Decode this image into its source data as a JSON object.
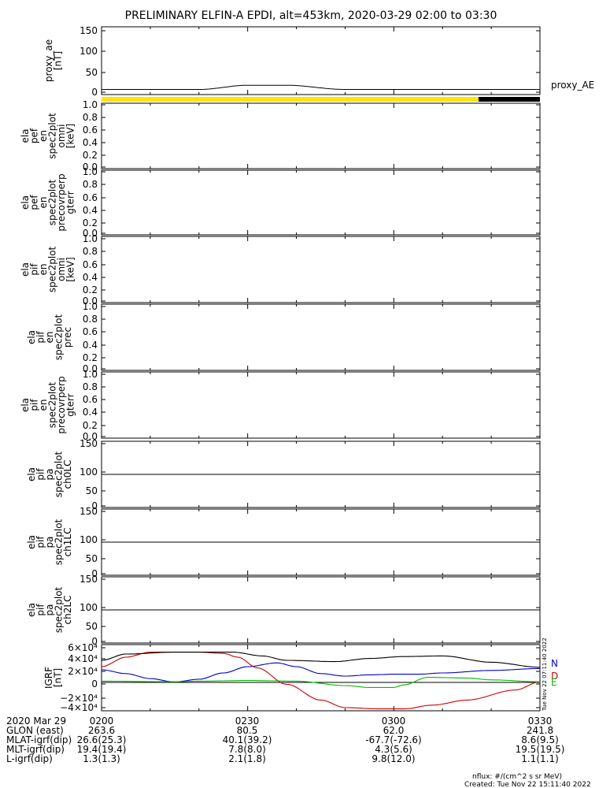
{
  "title": "PRELIMINARY ELFIN-A EPDI, alt=453km, 2020-03-29 02:00 to 03:30",
  "colors": {
    "axes": "#000000",
    "bar_yellow": "#ffe600",
    "bar_black": "#000000",
    "grf_N": "#0000cc",
    "grf_D": "#cc0000",
    "grf_E": "#00bb00",
    "grf_total": "#000000"
  },
  "created_side_text": "Tue Nov 22 07:11:40 2022",
  "footer": {
    "nflux": "nflux: #/(cm^2 s sr MeV)",
    "created": "Created: Tue Nov 22 15:11:40 2022"
  },
  "ephemeris": {
    "labels": [
      "2020 Mar 29",
      "GLON (east)",
      "MLAT-igrf(dip)",
      "MLT-igrf(dip)",
      "L-igrf(dip)"
    ],
    "times": [
      "0200",
      "0230",
      "0300",
      "0330"
    ],
    "rows": [
      [
        "263.6",
        "80.5",
        "62.0",
        "241.8"
      ],
      [
        "26.6(25.3)",
        "40.1(39.2)",
        "-67.7(-72.6)",
        "8.6(9.5)"
      ],
      [
        "19.4(19.4)",
        "7.8(8.0)",
        "4.3(5.6)",
        "19.5(19.5)"
      ],
      [
        "1.3(1.3)",
        "2.1(1.8)",
        "9.8(12.0)",
        "1.1(1.1)"
      ]
    ]
  },
  "chart_data": [
    {
      "type": "line",
      "ylabel": [
        "proxy_ae",
        "[nT]"
      ],
      "yticks": [
        "150",
        "100",
        "50",
        "0"
      ],
      "ylim": [
        0,
        160
      ],
      "legend": "proxy_AE",
      "series": [
        {
          "name": "proxy_AE",
          "x_minutes": [
            0,
            20,
            30,
            38,
            50,
            60,
            90
          ],
          "values": [
            12,
            12,
            22,
            22,
            12,
            12,
            12
          ]
        }
      ]
    },
    {
      "type": "heatmap",
      "ylabel": [
        "ela",
        "pef",
        "en",
        "spec2plot",
        "omni",
        "[keV]"
      ],
      "yticks": [
        "1.0",
        "0.8",
        "0.6",
        "0.4",
        "0.2",
        "0.0"
      ]
    },
    {
      "type": "heatmap",
      "ylabel": [
        "ela",
        "pef",
        "en",
        "spec2plot",
        "precovrperp",
        "gterr"
      ],
      "yticks": [
        "1.0",
        "0.8",
        "0.6",
        "0.4",
        "0.2",
        "0.0"
      ]
    },
    {
      "type": "heatmap",
      "ylabel": [
        "ela",
        "pif",
        "en",
        "spec2plot",
        "omni",
        "[keV]"
      ],
      "yticks": [
        "1.0",
        "0.8",
        "0.6",
        "0.4",
        "0.2",
        "0.0"
      ]
    },
    {
      "type": "heatmap",
      "ylabel": [
        "ela",
        "pif",
        "en",
        "spec2plot",
        "prec"
      ],
      "yticks": [
        "1.0",
        "0.8",
        "0.6",
        "0.4",
        "0.2",
        "0.0"
      ]
    },
    {
      "type": "heatmap",
      "ylabel": [
        "ela",
        "pif",
        "en",
        "spec2plot",
        "precovrperp",
        "gterr"
      ],
      "yticks": [
        "1.0",
        "0.8",
        "0.6",
        "0.4",
        "0.2",
        "0.0"
      ]
    },
    {
      "type": "heatmap",
      "ylabel": [
        "ela",
        "pif",
        "pa",
        "spec2plot",
        "ch0LC"
      ],
      "yticks": [
        "150",
        "100",
        "50",
        "0"
      ],
      "ylim": [
        0,
        180
      ],
      "reference_line": 90
    },
    {
      "type": "heatmap",
      "ylabel": [
        "ela",
        "pif",
        "pa",
        "spec2plot",
        "ch1LC"
      ],
      "yticks": [
        "150",
        "100",
        "50",
        "0"
      ],
      "ylim": [
        0,
        180
      ],
      "reference_line": 90
    },
    {
      "type": "heatmap",
      "ylabel": [
        "ela",
        "pif",
        "pa",
        "spec2plot",
        "ch2LC"
      ],
      "yticks": [
        "150",
        "100",
        "50",
        "0"
      ],
      "ylim": [
        0,
        180
      ],
      "reference_line": 90
    },
    {
      "type": "line",
      "ylabel": [
        "IGRF",
        "[nT]"
      ],
      "yticks": [
        "6×10⁴",
        "4×10⁴",
        "2×10⁴",
        "0",
        "−2×10⁴",
        "−4×10⁴"
      ],
      "ylim": [
        -45000,
        60000
      ],
      "legend_labels": [
        "N",
        "D",
        "E"
      ],
      "series": [
        {
          "name": "N",
          "x_minutes": [
            0,
            5,
            10,
            15,
            20,
            25,
            30,
            36,
            40,
            45,
            50,
            55,
            60,
            65,
            70,
            80,
            90
          ],
          "values": [
            20000,
            14000,
            6000,
            800,
            5000,
            15000,
            25000,
            31000,
            25000,
            14000,
            10000,
            12000,
            13000,
            13000,
            15000,
            19000,
            22000
          ]
        },
        {
          "name": "D",
          "x_minutes": [
            0,
            5,
            10,
            16,
            20,
            25,
            28,
            32,
            38,
            45,
            50,
            57,
            62,
            68,
            75,
            85,
            90
          ],
          "values": [
            25000,
            40000,
            48000,
            48000,
            48000,
            46000,
            40000,
            23000,
            -3000,
            -28000,
            -40000,
            -42000,
            -42000,
            -36000,
            -28000,
            -12000,
            1000
          ]
        },
        {
          "name": "E",
          "x_minutes": [
            0,
            15,
            20,
            30,
            40,
            50,
            55,
            60,
            62,
            67,
            75,
            80,
            90
          ],
          "values": [
            2000,
            1000,
            2000,
            3000,
            2000,
            -5000,
            -8000,
            -8000,
            -4000,
            8000,
            7000,
            4000,
            1000
          ]
        },
        {
          "name": "total",
          "x_minutes": [
            0,
            5,
            15,
            27,
            33,
            38,
            48,
            55,
            62,
            70,
            80,
            90
          ],
          "values": [
            35000,
            45000,
            48000,
            48000,
            42000,
            35000,
            33000,
            38000,
            41000,
            42000,
            32000,
            24000
          ]
        }
      ]
    }
  ]
}
